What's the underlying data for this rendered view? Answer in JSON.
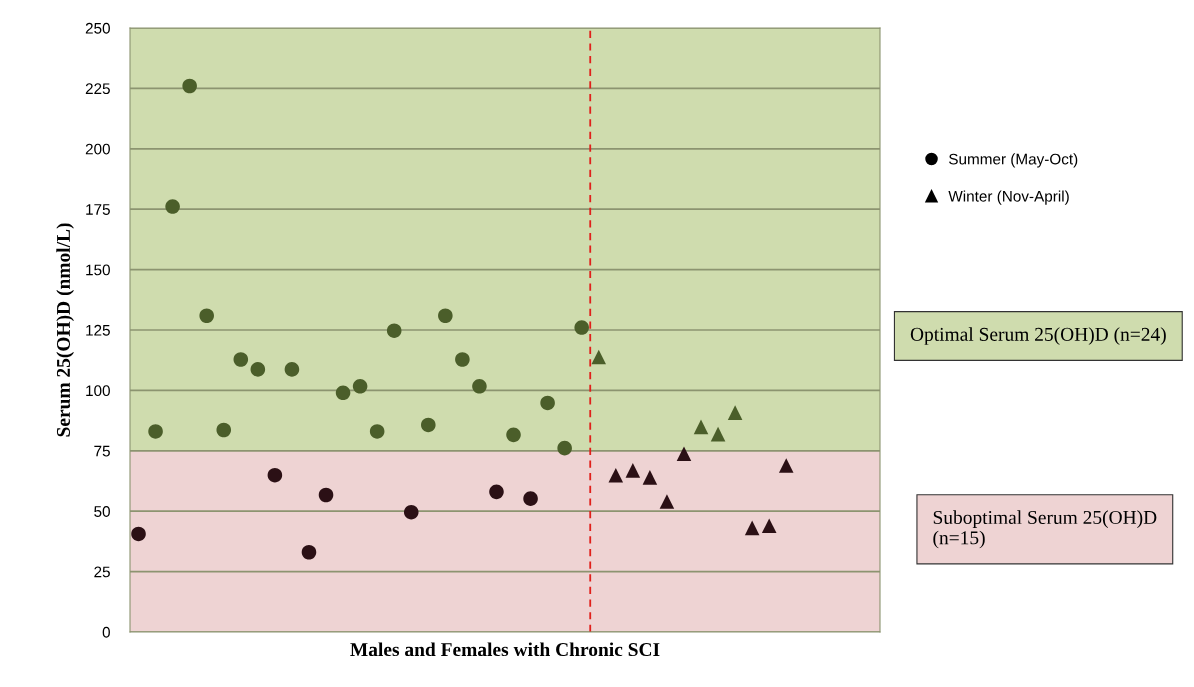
{
  "chart_data": {
    "type": "scatter",
    "xlabel": "Males and Females with Chronic SCI",
    "ylabel": "Serum 25(OH)D (nmol/L)",
    "categories": [
      null,
      null,
      null,
      null,
      null,
      null,
      null,
      null,
      null,
      null,
      null,
      null,
      null,
      null,
      null,
      null,
      null,
      null,
      null,
      null,
      null,
      null,
      null,
      null,
      null,
      null,
      null,
      null,
      null,
      null,
      null,
      null,
      null,
      null,
      null,
      null,
      null,
      null,
      null,
      null,
      null,
      null,
      null,
      null
    ],
    "ylim": [
      0,
      250
    ],
    "yticks": [
      0,
      25,
      50,
      75,
      100,
      125,
      150,
      175,
      200,
      225,
      250
    ],
    "grid": "y",
    "legend": "right",
    "series": [
      {
        "name": "Summer (May-Oct)",
        "color": "#000000",
        "marker": "circle",
        "values": [
          40.6,
          83.0,
          176.1,
          226.0,
          130.9,
          83.6,
          112.8,
          108.7,
          64.9,
          108.7,
          33.0,
          56.7,
          99.0,
          101.7,
          83.0,
          124.7,
          49.6,
          85.7,
          130.9,
          112.8,
          101.7,
          58.0,
          81.6,
          55.2,
          94.8,
          76.1,
          126.0,
          null,
          null,
          null,
          null,
          null,
          null,
          null,
          null,
          null,
          null,
          null,
          null,
          null,
          null,
          null,
          null,
          null
        ],
        "colors": [
          "#2b1015",
          "#4b5e2a",
          "#4b5e2a",
          "#4b5e2a",
          "#4b5e2a",
          "#4b5e2a",
          "#4b5e2a",
          "#4b5e2a",
          "#2b1015",
          "#4b5e2a",
          "#2b1015",
          "#2b1015",
          "#4b5e2a",
          "#4b5e2a",
          "#4b5e2a",
          "#4b5e2a",
          "#2b1015",
          "#4b5e2a",
          "#4b5e2a",
          "#4b5e2a",
          "#4b5e2a",
          "#2b1015",
          "#4b5e2a",
          "#2b1015",
          "#4b5e2a",
          "#4b5e2a",
          "#4b5e2a",
          null,
          null,
          null,
          null,
          null,
          null,
          null,
          null,
          null,
          null,
          null,
          null,
          null,
          null,
          null,
          null,
          null
        ]
      },
      {
        "name": "Winter (Nov-April)",
        "color": "#000000",
        "marker": "triangle",
        "values": [
          null,
          null,
          null,
          null,
          null,
          null,
          null,
          null,
          null,
          null,
          null,
          null,
          null,
          null,
          null,
          null,
          null,
          null,
          null,
          null,
          null,
          null,
          null,
          null,
          null,
          null,
          null,
          113.8,
          64.9,
          66.9,
          64.0,
          54.0,
          73.8,
          84.9,
          81.9,
          90.8,
          43.1,
          44.0,
          68.9,
          null,
          null,
          null,
          null,
          null
        ],
        "colors": [
          null,
          null,
          null,
          null,
          null,
          null,
          null,
          null,
          null,
          null,
          null,
          null,
          null,
          null,
          null,
          null,
          null,
          null,
          null,
          null,
          null,
          null,
          null,
          null,
          null,
          null,
          null,
          "#4b5e2a",
          "#2b1015",
          "#2b1015",
          "#2b1015",
          "#2b1015",
          "#2b1015",
          "#4b5e2a",
          "#4b5e2a",
          "#4b5e2a",
          "#2b1015",
          "#2b1015",
          "#2b1015",
          null,
          null,
          null,
          null,
          null
        ]
      }
    ],
    "bands": [
      {
        "axis": "y",
        "from": 75,
        "to": 250,
        "color": "#cfdcae",
        "label": "Optimal Serum 25(OH)D (n=24)"
      },
      {
        "axis": "y",
        "from": 0,
        "to": 75,
        "color": "#eed3d3",
        "label": "Suboptimal Serum 25(OH)D (n=15)"
      }
    ]
  }
}
